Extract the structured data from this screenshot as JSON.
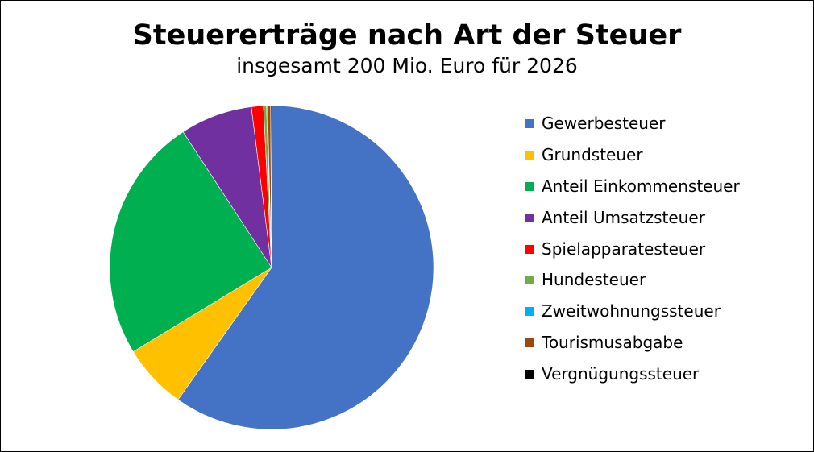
{
  "chart_data": {
    "type": "pie",
    "title": "Steuererträge nach Art der Steuer",
    "subtitle": "insgesamt 200 Mio. Euro für 2026",
    "legend_position": "right",
    "start_angle_deg": 0,
    "direction": "clockwise",
    "slices": [
      {
        "label": "Gewerbesteuer",
        "value": 59.8,
        "color": "#4472C4"
      },
      {
        "label": "Grundsteuer",
        "value": 6.5,
        "color": "#FFC000"
      },
      {
        "label": "Anteil Einkommensteuer",
        "value": 24.5,
        "color": "#00B050"
      },
      {
        "label": "Anteil Umsatzsteuer",
        "value": 7.2,
        "color": "#7030A0"
      },
      {
        "label": "Spielapparatesteuer",
        "value": 1.2,
        "color": "#FF0000"
      },
      {
        "label": "Hundesteuer",
        "value": 0.3,
        "color": "#70AD47"
      },
      {
        "label": "Zweitwohnungssteuer",
        "value": 0.1,
        "color": "#00B0F0"
      },
      {
        "label": "Tourismusabgabe",
        "value": 0.3,
        "color": "#9E480E"
      },
      {
        "label": "Vergnügungssteuer",
        "value": 0.1,
        "color": "#000000"
      }
    ]
  }
}
